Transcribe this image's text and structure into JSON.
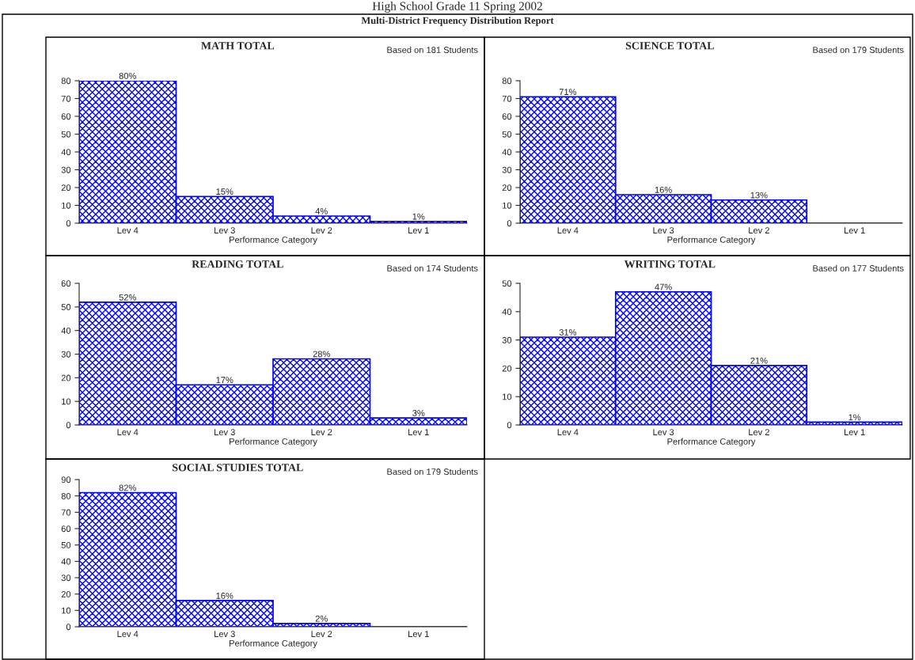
{
  "chart_data": [
    {
      "type": "other",
      "title": "High School Grade 11 Spring 2002",
      "subtitle": "Multi-District Frequency Distribution Report"
    },
    {
      "type": "bar",
      "title": "MATH TOTAL",
      "annotations": [
        "Based on 181 Students"
      ],
      "xlabel": "Performance Category",
      "categories": [
        "Lev 4",
        "Lev 3",
        "Lev 2",
        "Lev 1"
      ],
      "values": [
        80,
        15,
        4,
        1
      ],
      "value_labels": [
        "80%",
        "15%",
        "4%",
        "1%"
      ],
      "color": "#0000ff",
      "ylim": [
        0,
        80
      ],
      "yticks": [
        0,
        10,
        20,
        30,
        40,
        50,
        60,
        70,
        80
      ],
      "grid": false,
      "legend": false
    },
    {
      "type": "bar",
      "title": "SCIENCE TOTAL",
      "annotations": [
        "Based on 179 Students"
      ],
      "xlabel": "Performance Category",
      "categories": [
        "Lev 4",
        "Lev 3",
        "Lev 2",
        "Lev 1"
      ],
      "values": [
        71,
        16,
        13,
        0
      ],
      "value_labels": [
        "71%",
        "16%",
        "13%",
        null
      ],
      "color": "#0000ff",
      "ylim": [
        0,
        80
      ],
      "yticks": [
        0,
        10,
        20,
        30,
        40,
        50,
        60,
        70,
        80
      ],
      "grid": false,
      "legend": false
    },
    {
      "type": "bar",
      "title": "READING TOTAL",
      "annotations": [
        "Based on 174 Students"
      ],
      "xlabel": "Performance Category",
      "categories": [
        "Lev 4",
        "Lev 3",
        "Lev 2",
        "Lev 1"
      ],
      "values": [
        52,
        17,
        28,
        3
      ],
      "value_labels": [
        "52%",
        "17%",
        "28%",
        "3%"
      ],
      "color": "#0000ff",
      "ylim": [
        0,
        60
      ],
      "yticks": [
        0,
        10,
        20,
        30,
        40,
        50,
        60
      ],
      "grid": false,
      "legend": false
    },
    {
      "type": "bar",
      "title": "WRITING TOTAL",
      "annotations": [
        "Based on 177 Students"
      ],
      "xlabel": "Performance Category",
      "categories": [
        "Lev 4",
        "Lev 3",
        "Lev 2",
        "Lev 1"
      ],
      "values": [
        31,
        47,
        21,
        1
      ],
      "value_labels": [
        "31%",
        "47%",
        "21%",
        "1%"
      ],
      "color": "#0000ff",
      "ylim": [
        0,
        50
      ],
      "yticks": [
        0,
        10,
        20,
        30,
        40,
        50
      ],
      "grid": false,
      "legend": false
    },
    {
      "type": "bar",
      "title": "SOCIAL STUDIES TOTAL",
      "annotations": [
        "Based on 179 Students"
      ],
      "xlabel": "Performance Category",
      "categories": [
        "Lev 4",
        "Lev 3",
        "Lev 2",
        "Lev 1"
      ],
      "values": [
        82,
        16,
        2,
        0
      ],
      "value_labels": [
        "82%",
        "16%",
        "2%",
        null
      ],
      "color": "#0000ff",
      "ylim": [
        0,
        90
      ],
      "yticks": [
        0,
        10,
        20,
        30,
        40,
        50,
        60,
        70,
        80,
        90
      ],
      "grid": false,
      "legend": false
    }
  ]
}
